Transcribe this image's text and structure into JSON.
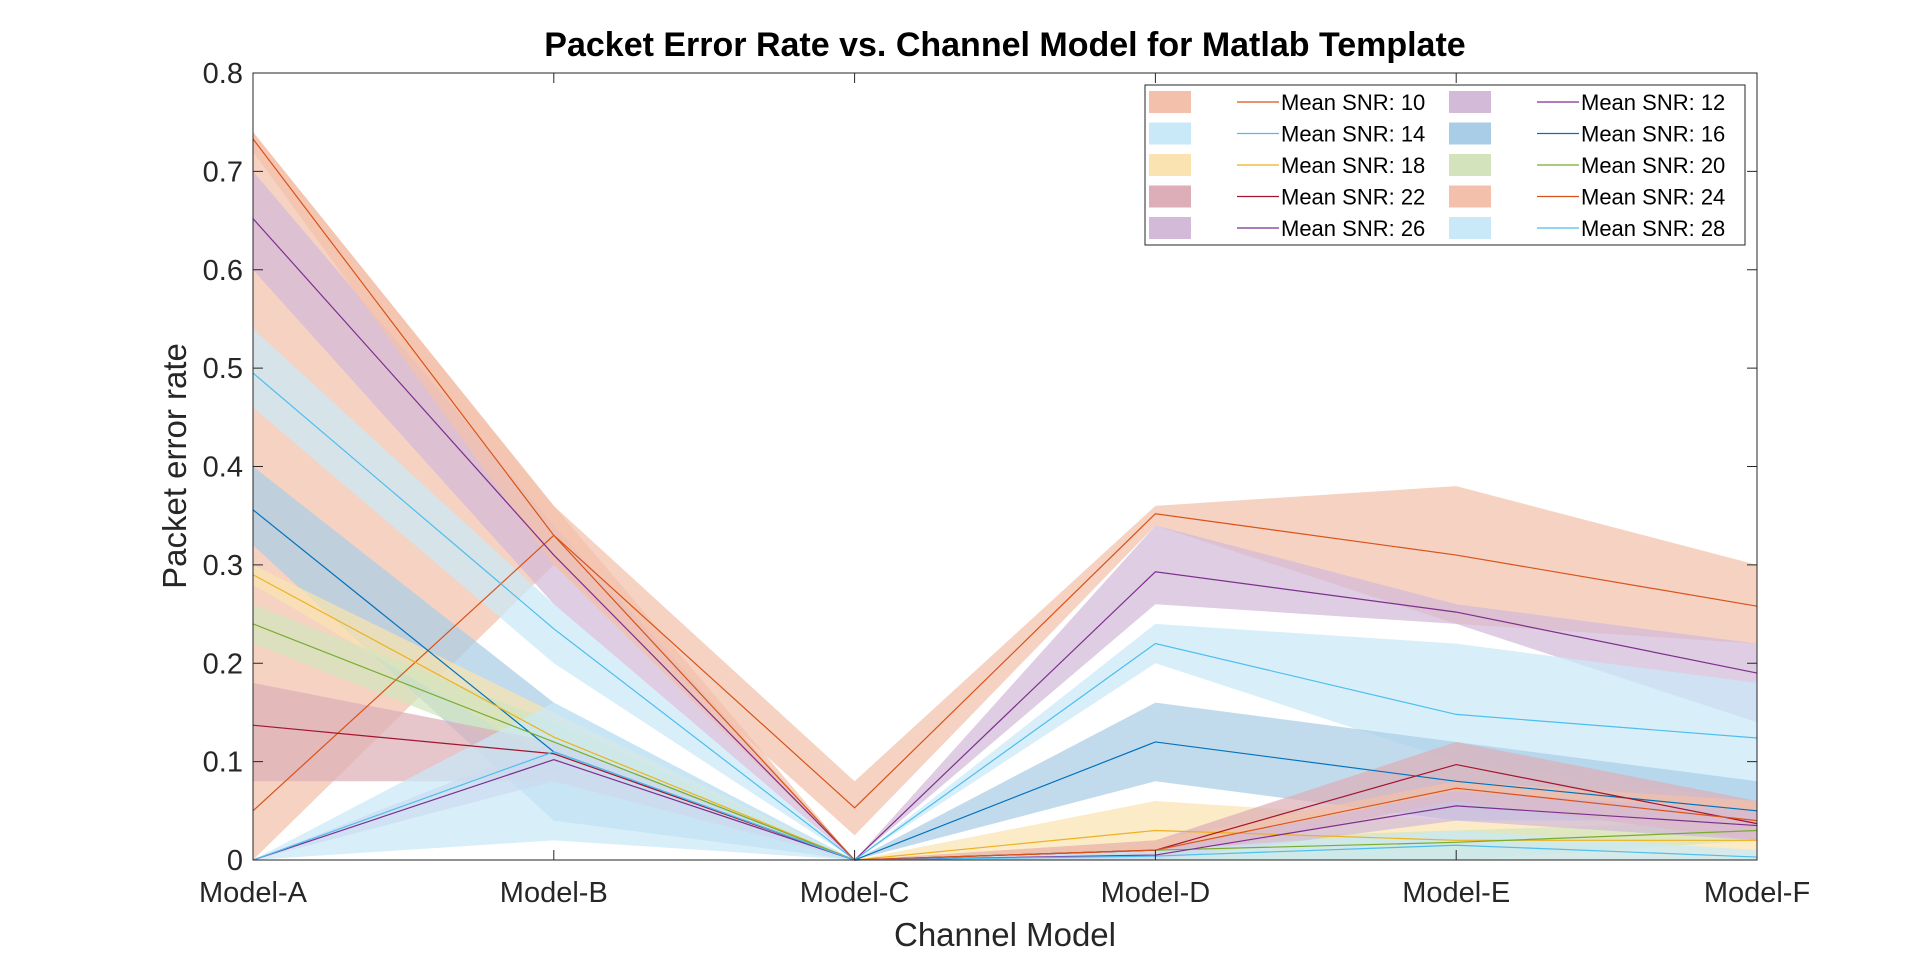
{
  "chart_data": {
    "type": "line",
    "title": "Packet Error Rate vs. Channel Model for Matlab Template",
    "xlabel": "Channel Model",
    "ylabel": "Packet error rate",
    "categories": [
      "Model-A",
      "Model-B",
      "Model-C",
      "Model-D",
      "Model-E",
      "Model-F"
    ],
    "ylim": [
      0,
      0.8
    ],
    "yticks": [
      0,
      0.1,
      0.2,
      0.3,
      0.4,
      0.5,
      0.6,
      0.7,
      0.8
    ],
    "ytick_labels": [
      "0",
      "0.1",
      "0.2",
      "0.3",
      "0.4",
      "0.5",
      "0.6",
      "0.7",
      "0.8"
    ],
    "grid": false,
    "legend": {
      "location": "top-right",
      "columns": 2
    },
    "series": [
      {
        "name": "Mean SNR: 10",
        "color": "#D95319",
        "fill": "#F3C0AB",
        "mean": [
          0.05,
          0.33,
          0.053,
          0.352,
          0.31,
          0.258
        ],
        "lower": [
          0.0,
          0.3,
          0.025,
          0.34,
          0.24,
          0.22
        ],
        "upper": [
          0.74,
          0.36,
          0.08,
          0.36,
          0.38,
          0.3
        ]
      },
      {
        "name": "Mean SNR: 12",
        "color": "#7E2F8E",
        "fill": "#D3BAD8",
        "mean": [
          0.652,
          0.31,
          0.0,
          0.293,
          0.252,
          0.19
        ],
        "lower": [
          0.6,
          0.26,
          0.0,
          0.26,
          0.24,
          0.14
        ],
        "upper": [
          0.7,
          0.34,
          0.0,
          0.34,
          0.26,
          0.22
        ]
      },
      {
        "name": "Mean SNR: 14",
        "color": "#4DBEEE",
        "fill": "#C9E9F8",
        "mean": [
          0.495,
          0.235,
          0.0,
          0.22,
          0.148,
          0.124
        ],
        "lower": [
          0.46,
          0.2,
          0.0,
          0.2,
          0.1,
          0.06
        ],
        "upper": [
          0.54,
          0.26,
          0.0,
          0.24,
          0.22,
          0.18
        ]
      },
      {
        "name": "Mean SNR: 16",
        "color": "#0072BD",
        "fill": "#A9CDE6",
        "mean": [
          0.356,
          0.11,
          0.0,
          0.12,
          0.08,
          0.05
        ],
        "lower": [
          0.32,
          0.04,
          0.0,
          0.08,
          0.04,
          0.04
        ],
        "upper": [
          0.4,
          0.16,
          0.0,
          0.16,
          0.12,
          0.08
        ]
      },
      {
        "name": "Mean SNR: 18",
        "color": "#EDB120",
        "fill": "#FAE3B0",
        "mean": [
          0.29,
          0.125,
          0.0,
          0.03,
          0.02,
          0.02
        ],
        "lower": [
          0.28,
          0.1,
          0.0,
          0.0,
          0.0,
          0.0
        ],
        "upper": [
          0.3,
          0.15,
          0.0,
          0.06,
          0.04,
          0.04
        ]
      },
      {
        "name": "Mean SNR: 20",
        "color": "#77AC30",
        "fill": "#D3E4BC",
        "mean": [
          0.24,
          0.12,
          0.0,
          0.01,
          0.018,
          0.03
        ],
        "lower": [
          0.22,
          0.1,
          0.0,
          0.0,
          0.0,
          0.02
        ],
        "upper": [
          0.26,
          0.14,
          0.0,
          0.02,
          0.03,
          0.04
        ]
      },
      {
        "name": "Mean SNR: 22",
        "color": "#A2142F",
        "fill": "#DDAEB7",
        "mean": [
          0.137,
          0.108,
          0.0,
          0.01,
          0.097,
          0.037
        ],
        "lower": [
          0.08,
          0.08,
          0.0,
          0.0,
          0.06,
          0.02
        ],
        "upper": [
          0.18,
          0.12,
          0.0,
          0.02,
          0.12,
          0.06
        ]
      },
      {
        "name": "Mean SNR: 24",
        "color": "#D95319",
        "fill": "#F3C0AB",
        "mean": [
          0.733,
          0.33,
          0.0,
          0.01,
          0.073,
          0.04
        ],
        "lower": [
          0.72,
          0.3,
          0.0,
          0.0,
          0.06,
          0.02
        ],
        "upper": [
          0.74,
          0.36,
          0.0,
          0.02,
          0.08,
          0.06
        ]
      },
      {
        "name": "Mean SNR: 26",
        "color": "#7E2F8E",
        "fill": "#D3BAD8",
        "mean": [
          0.0,
          0.102,
          0.0,
          0.005,
          0.055,
          0.035
        ],
        "lower": [
          0.0,
          0.08,
          0.0,
          0.0,
          0.04,
          0.02
        ],
        "upper": [
          0.0,
          0.12,
          0.0,
          0.01,
          0.07,
          0.05
        ]
      },
      {
        "name": "Mean SNR: 28",
        "color": "#4DBEEE",
        "fill": "#C9E9F8",
        "mean": [
          0.0,
          0.11,
          0.0,
          0.004,
          0.015,
          0.003
        ],
        "lower": [
          0.0,
          0.02,
          0.0,
          0.0,
          0.0,
          0.0
        ],
        "upper": [
          0.0,
          0.16,
          0.0,
          0.01,
          0.03,
          0.01
        ]
      }
    ]
  }
}
